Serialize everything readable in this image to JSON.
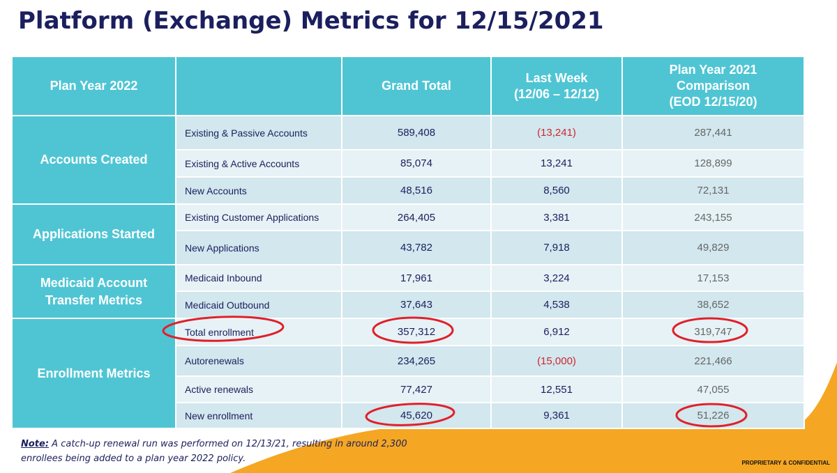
{
  "title": "Platform (Exchange) Metrics for 12/15/2021",
  "colors": {
    "header": "#4fc5d4",
    "title": "#1b1f5e",
    "negative": "#d0262e",
    "accent_orange": "#f5a623",
    "annotation": "#e0202a"
  },
  "table": {
    "headers": [
      "Plan Year 2022",
      "",
      "Grand Total",
      "Last Week\n(12/06 – 12/12)",
      "Plan Year 2021\nComparison\n(EOD 12/15/20)"
    ],
    "groups": [
      "Accounts Created",
      "Applications Started",
      "Medicaid Account Transfer Metrics",
      "Enrollment Metrics"
    ],
    "rows": [
      {
        "label": "Existing & Passive Accounts",
        "grand": "589,408",
        "week": "(13,241)",
        "cmp": "287,441"
      },
      {
        "label": "Existing & Active Accounts",
        "grand": "85,074",
        "week": "13,241",
        "cmp": "128,899"
      },
      {
        "label": "New Accounts",
        "grand": "48,516",
        "week": "8,560",
        "cmp": "72,131"
      },
      {
        "label": "Existing Customer Applications",
        "grand": "264,405",
        "week": "3,381",
        "cmp": "243,155"
      },
      {
        "label": "New Applications",
        "grand": "43,782",
        "week": "7,918",
        "cmp": "49,829"
      },
      {
        "label": "Medicaid Inbound",
        "grand": "17,961",
        "week": "3,224",
        "cmp": "17,153"
      },
      {
        "label": "Medicaid Outbound",
        "grand": "37,643",
        "week": "4,538",
        "cmp": "38,652"
      },
      {
        "label": "Total enrollment",
        "grand": "357,312",
        "week": "6,912",
        "cmp": "319,747"
      },
      {
        "label": "Autorenewals",
        "grand": "234,265",
        "week": "(15,000)",
        "cmp": "221,466"
      },
      {
        "label": "Active renewals",
        "grand": "77,427",
        "week": "12,551",
        "cmp": "47,055"
      },
      {
        "label": "New enrollment",
        "grand": "45,620",
        "week": "9,361",
        "cmp": "51,226"
      }
    ]
  },
  "note": {
    "label": "Note:",
    "text": " A catch-up renewal run was performed on 12/13/21, resulting in around 2,300 enrollees being added to a plan year 2022 policy."
  },
  "footer": "PROPRIETARY & CONFIDENTIAL"
}
